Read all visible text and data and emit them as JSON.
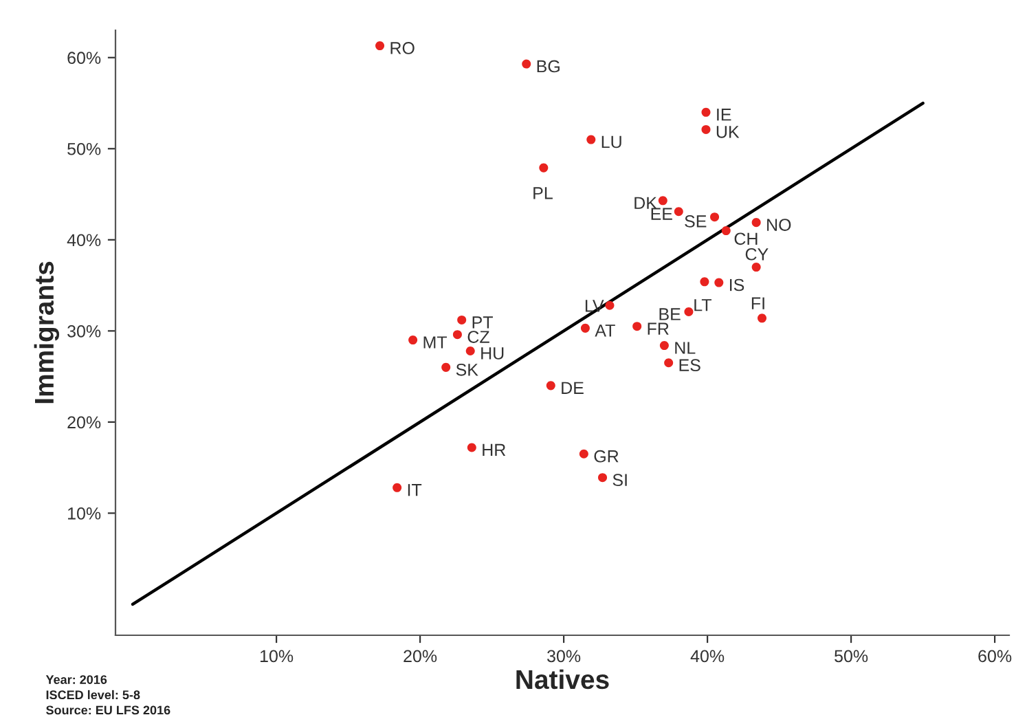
{
  "chart_data": {
    "type": "scatter",
    "xlabel": "Natives",
    "ylabel": "Immigrants",
    "xlim": [
      -1.2,
      61
    ],
    "ylim": [
      -3.4,
      63
    ],
    "xticks": [
      {
        "value": 10,
        "label": "10%"
      },
      {
        "value": 20,
        "label": "20%"
      },
      {
        "value": 30,
        "label": "30%"
      },
      {
        "value": 40,
        "label": "40%"
      },
      {
        "value": 50,
        "label": "50%"
      },
      {
        "value": 60,
        "label": "60%"
      }
    ],
    "yticks": [
      {
        "value": 10,
        "label": "10%"
      },
      {
        "value": 20,
        "label": "20%"
      },
      {
        "value": 30,
        "label": "30%"
      },
      {
        "value": 40,
        "label": "40%"
      },
      {
        "value": 50,
        "label": "50%"
      },
      {
        "value": 60,
        "label": "60%"
      }
    ],
    "grid": false,
    "legend": false,
    "series": [
      {
        "type": "line",
        "color": "#000000",
        "x": [
          0,
          55
        ],
        "values": [
          0,
          55
        ]
      },
      {
        "color": "#e8231f",
        "marker": "circle",
        "x": [
          17.2,
          27.4,
          31.9,
          28.6,
          39.9,
          39.9,
          36.9,
          38.0,
          40.5,
          41.3,
          43.4,
          43.4,
          40.8,
          39.8,
          38.7,
          43.8,
          33.2,
          31.5,
          35.1,
          37.0,
          37.3,
          29.1,
          22.9,
          19.5,
          22.6,
          23.5,
          21.8,
          23.6,
          31.4,
          32.7,
          18.4
        ],
        "values": [
          61.3,
          59.3,
          51.0,
          47.9,
          54.0,
          52.1,
          44.3,
          43.1,
          42.5,
          41.0,
          41.9,
          37.0,
          35.3,
          35.4,
          32.1,
          31.4,
          32.8,
          30.3,
          30.5,
          28.4,
          26.5,
          24.0,
          31.2,
          29.0,
          29.6,
          27.8,
          26.0,
          17.2,
          16.5,
          13.9,
          12.8
        ]
      }
    ],
    "annotations": [
      {
        "text": "RO",
        "x": 17.2,
        "y": 61.3
      },
      {
        "text": "BG",
        "x": 27.4,
        "y": 59.3
      },
      {
        "text": "LU",
        "x": 31.9,
        "y": 51.0
      },
      {
        "text": "PL",
        "x": 28.6,
        "y": 47.9
      },
      {
        "text": "IE",
        "x": 39.9,
        "y": 54.0
      },
      {
        "text": "UK",
        "x": 39.9,
        "y": 52.1
      },
      {
        "text": "DK",
        "x": 36.9,
        "y": 44.3
      },
      {
        "text": "EE",
        "x": 38.0,
        "y": 43.1
      },
      {
        "text": "SE",
        "x": 40.5,
        "y": 42.5
      },
      {
        "text": "CH",
        "x": 41.3,
        "y": 41.0
      },
      {
        "text": "NO",
        "x": 43.4,
        "y": 41.9
      },
      {
        "text": "CY",
        "x": 43.4,
        "y": 37.0
      },
      {
        "text": "IS",
        "x": 40.8,
        "y": 35.3
      },
      {
        "text": "LT",
        "x": 39.8,
        "y": 35.4
      },
      {
        "text": "BE",
        "x": 38.7,
        "y": 32.1
      },
      {
        "text": "FI",
        "x": 43.8,
        "y": 31.4
      },
      {
        "text": "LV",
        "x": 33.2,
        "y": 32.8
      },
      {
        "text": "AT",
        "x": 31.5,
        "y": 30.3
      },
      {
        "text": "FR",
        "x": 35.1,
        "y": 30.5
      },
      {
        "text": "NL",
        "x": 37.0,
        "y": 28.4
      },
      {
        "text": "ES",
        "x": 37.3,
        "y": 26.5
      },
      {
        "text": "DE",
        "x": 29.1,
        "y": 24.0
      },
      {
        "text": "PT",
        "x": 22.9,
        "y": 31.2
      },
      {
        "text": "MT",
        "x": 19.5,
        "y": 29.0
      },
      {
        "text": "CZ",
        "x": 22.6,
        "y": 29.6
      },
      {
        "text": "HU",
        "x": 23.5,
        "y": 27.8
      },
      {
        "text": "SK",
        "x": 21.8,
        "y": 26.0
      },
      {
        "text": "HR",
        "x": 23.6,
        "y": 17.2
      },
      {
        "text": "GR",
        "x": 31.4,
        "y": 16.5
      },
      {
        "text": "SI",
        "x": 32.7,
        "y": 13.9
      },
      {
        "text": "IT",
        "x": 18.4,
        "y": 12.8
      },
      "Year: 2016",
      "ISCED level: 5-8",
      "Source: EU LFS 2016"
    ]
  }
}
